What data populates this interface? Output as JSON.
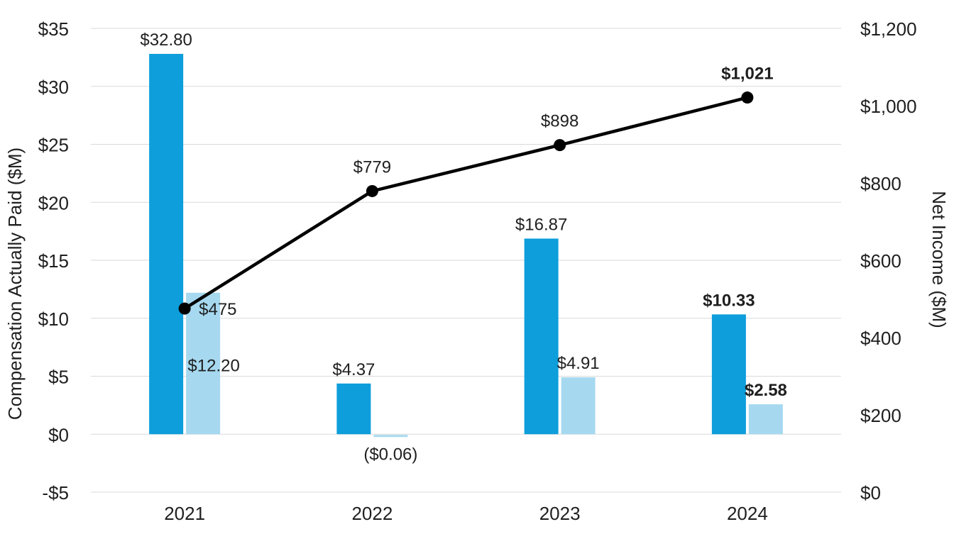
{
  "chart_data": {
    "type": "combo",
    "title": "",
    "categories": [
      "2021",
      "2022",
      "2023",
      "2024"
    ],
    "series": [
      {
        "name": "compensation-bar-primary",
        "type": "bar",
        "axis": "left",
        "color": "#0d9edb",
        "values": [
          32.8,
          4.37,
          16.87,
          10.33
        ],
        "labels": [
          "$32.80",
          "$4.37",
          "$16.87",
          "$10.33"
        ],
        "label_bold": [
          false,
          false,
          false,
          true
        ],
        "label_position": [
          "above",
          "above",
          "above",
          "above"
        ]
      },
      {
        "name": "compensation-bar-secondary",
        "type": "bar",
        "axis": "left",
        "color": "#a6d9f0",
        "values": [
          12.2,
          -0.06,
          4.91,
          2.58
        ],
        "labels": [
          "$12.20",
          "($0.06)",
          "$4.91",
          "$2.58"
        ],
        "label_bold": [
          false,
          false,
          false,
          true
        ],
        "label_position": [
          "inside-mid",
          "below",
          "above",
          "above"
        ]
      },
      {
        "name": "net-income-line",
        "type": "line",
        "axis": "right",
        "color": "#000000",
        "values": [
          475,
          779,
          898,
          1021
        ],
        "labels": [
          "$475",
          "$779",
          "$898",
          "$1,021"
        ],
        "label_bold": [
          false,
          false,
          false,
          true
        ],
        "label_position": [
          "right-of-point",
          "above-point",
          "above-point",
          "above-point"
        ]
      }
    ],
    "left_axis": {
      "title": "Compensation Actually Paid ($M)",
      "min": -5,
      "max": 35,
      "step": 5,
      "ticks": [
        "$35",
        "$30",
        "$25",
        "$20",
        "$15",
        "$10",
        "$5",
        "$0",
        "-$5"
      ]
    },
    "right_axis": {
      "title": "Net Income ($M)",
      "min": 0,
      "max": 1200,
      "step": 200,
      "ticks": [
        "$1,200",
        "$1,000",
        "$800",
        "$600",
        "$400",
        "$200",
        "$0"
      ]
    },
    "grid": true,
    "legend": "none",
    "colors": {
      "background": "#ffffff",
      "gridline": "#d9d9d9",
      "tick_text": "#1f1f1f",
      "label_text": "#111111"
    }
  }
}
